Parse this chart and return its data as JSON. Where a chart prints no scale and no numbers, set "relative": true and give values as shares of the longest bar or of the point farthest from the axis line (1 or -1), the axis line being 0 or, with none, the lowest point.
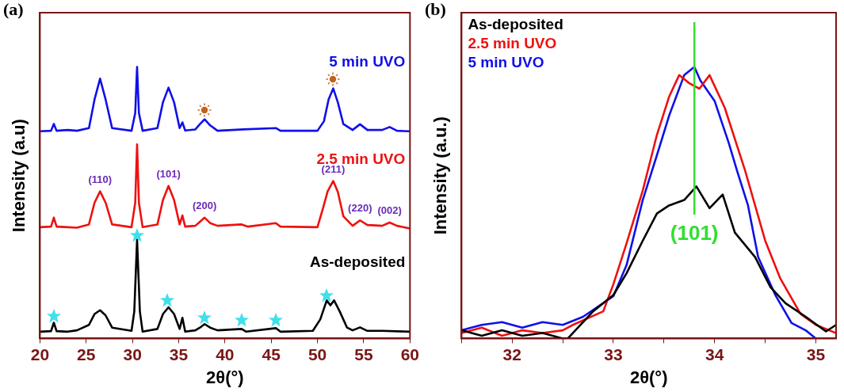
{
  "chart_data": [
    {
      "type": "line",
      "xlabel": "2θ(°)",
      "ylabel": "Intensity (a.u)",
      "relative": true,
      "legend": false,
      "xlim": [
        20,
        60
      ],
      "xticks": [
        20,
        25,
        30,
        35,
        40,
        45,
        50,
        55,
        60
      ],
      "series": [
        {
          "name": "5 min UVO",
          "color": "#1010e8",
          "x": [
            20,
            21.2,
            21.5,
            21.8,
            23,
            24,
            25.3,
            25.9,
            26.5,
            27.1,
            27.8,
            29.9,
            30.3,
            30.5,
            30.7,
            31.1,
            32.7,
            33.3,
            33.9,
            34.5,
            35.1,
            35.4,
            35.7,
            36.8,
            37.3,
            37.8,
            38.4,
            39.2,
            42,
            45.5,
            46,
            50,
            50.7,
            51.2,
            51.7,
            52.2,
            52.8,
            53.8,
            54.6,
            55.4,
            57,
            57.8,
            58.6,
            60
          ],
          "values": [
            0.763,
            0.765,
            0.79,
            0.765,
            0.768,
            0.765,
            0.775,
            0.88,
            0.957,
            0.88,
            0.775,
            0.765,
            0.83,
            1.0,
            0.83,
            0.765,
            0.775,
            0.87,
            0.924,
            0.87,
            0.775,
            0.796,
            0.766,
            0.77,
            0.79,
            0.807,
            0.785,
            0.765,
            0.77,
            0.775,
            0.765,
            0.765,
            0.8,
            0.88,
            0.921,
            0.87,
            0.79,
            0.768,
            0.789,
            0.768,
            0.768,
            0.779,
            0.765,
            0.763
          ]
        },
        {
          "name": "2.5 min UVO",
          "color": "#ee1111",
          "x": [
            20,
            21.2,
            21.5,
            21.8,
            23,
            24,
            25.3,
            25.9,
            26.5,
            27.1,
            27.8,
            29.9,
            30.3,
            30.5,
            30.7,
            31.1,
            32.7,
            33.3,
            33.9,
            34.5,
            35.1,
            35.4,
            35.7,
            36.8,
            37.3,
            37.8,
            38.4,
            39.2,
            41.8,
            42.5,
            45.5,
            46,
            50,
            50.6,
            51.1,
            51.7,
            52.2,
            52.8,
            53.8,
            54.6,
            55.4,
            57,
            57.8,
            58.6,
            60
          ],
          "values": [
            0.41,
            0.412,
            0.445,
            0.412,
            0.41,
            0.408,
            0.42,
            0.5,
            0.542,
            0.5,
            0.42,
            0.41,
            0.5,
            0.715,
            0.5,
            0.41,
            0.42,
            0.51,
            0.562,
            0.51,
            0.42,
            0.453,
            0.412,
            0.415,
            0.43,
            0.445,
            0.425,
            0.415,
            0.42,
            0.412,
            0.425,
            0.412,
            0.41,
            0.48,
            0.542,
            0.58,
            0.54,
            0.45,
            0.415,
            0.435,
            0.418,
            0.415,
            0.427,
            0.415,
            0.405
          ]
        },
        {
          "name": "As-deposited",
          "color": "#000000",
          "x": [
            20,
            21.2,
            21.5,
            21.8,
            23,
            24,
            25.3,
            25.9,
            26.5,
            27.1,
            27.8,
            29.9,
            30.2,
            30.5,
            30.8,
            31.1,
            32.7,
            33.3,
            33.9,
            34.5,
            35.1,
            35.4,
            35.7,
            36.8,
            37.3,
            37.8,
            38.4,
            39.2,
            41.8,
            42.3,
            45.5,
            46,
            49.5,
            50.3,
            51.0,
            51.4,
            51.8,
            52.4,
            53.2,
            53.8,
            54.6,
            55.4,
            57,
            60
          ],
          "values": [
            0.025,
            0.027,
            0.058,
            0.027,
            0.025,
            0.03,
            0.05,
            0.09,
            0.104,
            0.085,
            0.04,
            0.028,
            0.1,
            0.364,
            0.1,
            0.025,
            0.035,
            0.09,
            0.115,
            0.09,
            0.035,
            0.076,
            0.025,
            0.03,
            0.04,
            0.053,
            0.04,
            0.03,
            0.035,
            0.025,
            0.038,
            0.025,
            0.028,
            0.07,
            0.14,
            0.122,
            0.14,
            0.1,
            0.04,
            0.03,
            0.041,
            0.028,
            0.028,
            0.025
          ]
        }
      ],
      "annotations": [
        "(a)",
        {
          "text": "(110)",
          "x": 26.5,
          "y": 0.542
        },
        {
          "text": "(101)",
          "x": 33.9,
          "y": 0.562
        },
        {
          "text": "(200)",
          "x": 37.8,
          "y": 0.445
        },
        {
          "text": "(211)",
          "x": 51.7,
          "y": 0.58
        },
        {
          "text": "(220)",
          "x": 54.6,
          "y": 0.435
        },
        {
          "text": "(002)",
          "x": 57.8,
          "y": 0.427
        }
      ]
    },
    {
      "type": "line",
      "xlabel": "2θ(°)",
      "ylabel": "Intensity (a.u.)",
      "relative": true,
      "legend": "top left",
      "xlim": [
        31.5,
        35.2
      ],
      "xticks": [
        {
          "value": 31.5,
          "label": null
        },
        32,
        {
          "value": 32.5,
          "label": null
        },
        33,
        {
          "value": 33.5,
          "label": null
        },
        34,
        {
          "value": 34.5,
          "label": null
        },
        35
      ],
      "series": [
        {
          "name": "As-deposited",
          "color": "#000000",
          "x": [
            31.5,
            31.7,
            31.9,
            32.1,
            32.3,
            32.5,
            32.55,
            32.8,
            33.0,
            33.13,
            33.29,
            33.43,
            33.55,
            33.7,
            33.82,
            33.95,
            34.08,
            34.2,
            34.4,
            34.55,
            34.7,
            34.9,
            35.1,
            35.2
          ],
          "values": [
            0.03,
            0.01,
            0.03,
            0.01,
            0.02,
            0.0,
            0.0,
            0.1,
            0.16,
            0.24,
            0.36,
            0.46,
            0.49,
            0.51,
            0.56,
            0.48,
            0.53,
            0.39,
            0.3,
            0.19,
            0.13,
            0.08,
            0.026,
            0.05
          ]
        },
        {
          "name": "2.5 min UVO",
          "color": "#ee1111",
          "x": [
            31.5,
            31.7,
            31.9,
            32.1,
            32.3,
            32.5,
            32.6,
            32.9,
            33.0,
            33.13,
            33.29,
            33.43,
            33.55,
            33.65,
            33.75,
            33.85,
            33.95,
            34.1,
            34.3,
            34.5,
            34.65,
            34.85,
            35.0,
            35.2
          ],
          "values": [
            0.02,
            0.04,
            0.01,
            0.03,
            0.02,
            0.03,
            0.05,
            0.1,
            0.2,
            0.35,
            0.545,
            0.75,
            0.89,
            0.97,
            0.94,
            0.92,
            0.97,
            0.85,
            0.62,
            0.36,
            0.22,
            0.09,
            0.05,
            0.02
          ]
        },
        {
          "name": "5 min UVO",
          "color": "#1010e8",
          "x": [
            31.5,
            31.7,
            31.9,
            32.1,
            32.3,
            32.5,
            32.7,
            33.0,
            33.13,
            33.29,
            33.43,
            33.55,
            33.7,
            33.8,
            33.86,
            34.0,
            34.14,
            34.22,
            34.33,
            34.43,
            34.6,
            34.76,
            34.9,
            35.0
          ],
          "values": [
            0.03,
            0.05,
            0.06,
            0.04,
            0.06,
            0.05,
            0.08,
            0.156,
            0.27,
            0.51,
            0.675,
            0.82,
            0.97,
            1.0,
            0.95,
            0.875,
            0.72,
            0.62,
            0.49,
            0.3,
            0.16,
            0.057,
            0.03,
            0.0
          ]
        }
      ],
      "ref_lines": [
        {
          "axis": "x",
          "value": 33.8,
          "color": "#33dd33"
        }
      ],
      "annotations": [
        "(b)",
        "(101)"
      ]
    }
  ]
}
